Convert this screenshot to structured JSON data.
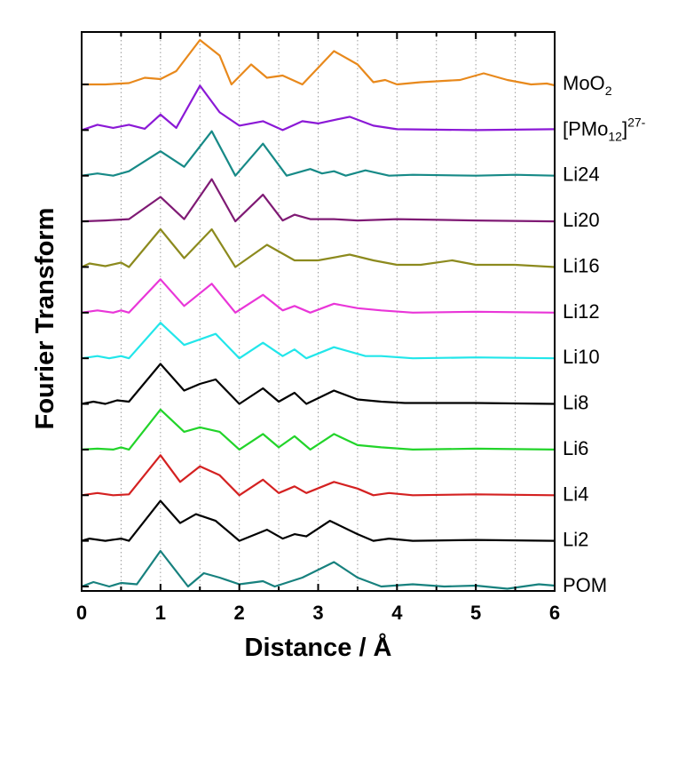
{
  "chart_data": {
    "type": "line",
    "title": "",
    "xlabel": "Distance / Å",
    "ylabel": "Fourier Transform",
    "xlim": [
      0,
      6
    ],
    "x_ticks": [
      "0",
      "1",
      "2",
      "3",
      "4",
      "5",
      "6"
    ],
    "y_ticks_shown": false,
    "grid": "vertical dotted at 0.5 Å intervals",
    "legend": "none (series labelled at right end of each curve)",
    "stacked_offset": true,
    "series": [
      {
        "name": "MoO₂",
        "label_main": "MoO",
        "label_sub": "2",
        "label_sup": "",
        "label_close": "",
        "color": "#e8891c",
        "points": [
          [
            0,
            0.0
          ],
          [
            0.3,
            0.0
          ],
          [
            0.6,
            0.03
          ],
          [
            0.8,
            0.15
          ],
          [
            1.0,
            0.12
          ],
          [
            1.2,
            0.3
          ],
          [
            1.5,
            1.0
          ],
          [
            1.75,
            0.65
          ],
          [
            1.9,
            0.0
          ],
          [
            2.15,
            0.45
          ],
          [
            2.35,
            0.15
          ],
          [
            2.55,
            0.2
          ],
          [
            2.8,
            0.0
          ],
          [
            3.2,
            0.75
          ],
          [
            3.5,
            0.45
          ],
          [
            3.7,
            0.05
          ],
          [
            3.85,
            0.1
          ],
          [
            4.0,
            0.0
          ],
          [
            4.3,
            0.05
          ],
          [
            4.8,
            0.1
          ],
          [
            5.1,
            0.25
          ],
          [
            5.4,
            0.1
          ],
          [
            5.7,
            0.0
          ],
          [
            5.9,
            0.02
          ],
          [
            6.0,
            -0.02
          ]
        ]
      },
      {
        "name": "[PMo₁₂]²⁷⁻",
        "label_main": "[PMo",
        "label_sub": "12",
        "label_sup": "27-",
        "label_close": "]",
        "color": "#8b19d6",
        "points": [
          [
            0,
            0.0
          ],
          [
            0.2,
            0.12
          ],
          [
            0.4,
            0.05
          ],
          [
            0.6,
            0.12
          ],
          [
            0.8,
            0.03
          ],
          [
            1.0,
            0.35
          ],
          [
            1.2,
            0.05
          ],
          [
            1.5,
            1.0
          ],
          [
            1.75,
            0.4
          ],
          [
            2.0,
            0.1
          ],
          [
            2.3,
            0.2
          ],
          [
            2.55,
            0.0
          ],
          [
            2.8,
            0.2
          ],
          [
            3.0,
            0.15
          ],
          [
            3.4,
            0.3
          ],
          [
            3.7,
            0.1
          ],
          [
            4.0,
            0.02
          ],
          [
            5.0,
            0.0
          ],
          [
            6.0,
            0.02
          ]
        ]
      },
      {
        "name": "Li24",
        "label_main": "Li24",
        "label_sub": "",
        "label_sup": "",
        "label_close": "",
        "color": "#178a87",
        "points": [
          [
            0,
            0.0
          ],
          [
            0.2,
            0.05
          ],
          [
            0.4,
            0.0
          ],
          [
            0.6,
            0.1
          ],
          [
            1.0,
            0.55
          ],
          [
            1.3,
            0.2
          ],
          [
            1.65,
            1.0
          ],
          [
            1.95,
            0.0
          ],
          [
            2.3,
            0.72
          ],
          [
            2.6,
            0.0
          ],
          [
            2.9,
            0.15
          ],
          [
            3.05,
            0.05
          ],
          [
            3.2,
            0.1
          ],
          [
            3.35,
            0.0
          ],
          [
            3.6,
            0.12
          ],
          [
            3.9,
            0.0
          ],
          [
            4.2,
            0.02
          ],
          [
            5.0,
            0.0
          ],
          [
            5.5,
            0.02
          ],
          [
            6.0,
            0.0
          ]
        ]
      },
      {
        "name": "Li20",
        "label_main": "Li20",
        "label_sub": "",
        "label_sup": "",
        "label_close": "",
        "color": "#7f1a74",
        "points": [
          [
            0,
            0.0
          ],
          [
            0.3,
            0.02
          ],
          [
            0.6,
            0.05
          ],
          [
            1.0,
            0.55
          ],
          [
            1.3,
            0.05
          ],
          [
            1.65,
            0.95
          ],
          [
            1.95,
            0.0
          ],
          [
            2.3,
            0.6
          ],
          [
            2.55,
            0.02
          ],
          [
            2.7,
            0.15
          ],
          [
            2.9,
            0.05
          ],
          [
            3.2,
            0.05
          ],
          [
            3.5,
            0.02
          ],
          [
            4.0,
            0.05
          ],
          [
            5.0,
            0.02
          ],
          [
            6.0,
            0.0
          ]
        ]
      },
      {
        "name": "Li16",
        "label_main": "Li16",
        "label_sub": "",
        "label_sup": "",
        "label_close": "",
        "color": "#8c8a1e",
        "points": [
          [
            0,
            0.0
          ],
          [
            0.1,
            0.08
          ],
          [
            0.3,
            0.02
          ],
          [
            0.5,
            0.1
          ],
          [
            0.6,
            0.0
          ],
          [
            1.0,
            0.85
          ],
          [
            1.3,
            0.2
          ],
          [
            1.65,
            0.85
          ],
          [
            1.95,
            0.0
          ],
          [
            2.35,
            0.5
          ],
          [
            2.7,
            0.15
          ],
          [
            3.0,
            0.15
          ],
          [
            3.4,
            0.28
          ],
          [
            3.7,
            0.15
          ],
          [
            4.0,
            0.05
          ],
          [
            4.3,
            0.05
          ],
          [
            4.7,
            0.15
          ],
          [
            5.0,
            0.05
          ],
          [
            5.5,
            0.05
          ],
          [
            6.0,
            0.0
          ]
        ]
      },
      {
        "name": "Li12",
        "label_main": "Li12",
        "label_sub": "",
        "label_sup": "",
        "label_close": "",
        "color": "#e936d8",
        "points": [
          [
            0,
            0.0
          ],
          [
            0.2,
            0.05
          ],
          [
            0.4,
            0.0
          ],
          [
            0.5,
            0.05
          ],
          [
            0.6,
            0.0
          ],
          [
            1.0,
            0.75
          ],
          [
            1.3,
            0.15
          ],
          [
            1.65,
            0.65
          ],
          [
            1.95,
            0.0
          ],
          [
            2.3,
            0.4
          ],
          [
            2.55,
            0.05
          ],
          [
            2.7,
            0.15
          ],
          [
            2.9,
            0.0
          ],
          [
            3.2,
            0.2
          ],
          [
            3.5,
            0.1
          ],
          [
            3.8,
            0.05
          ],
          [
            4.2,
            0.0
          ],
          [
            5.0,
            0.02
          ],
          [
            6.0,
            0.0
          ]
        ]
      },
      {
        "name": "Li10",
        "label_main": "Li10",
        "label_sub": "",
        "label_sup": "",
        "label_close": "",
        "color": "#22e6ea",
        "points": [
          [
            0,
            0.0
          ],
          [
            0.2,
            0.05
          ],
          [
            0.35,
            0.0
          ],
          [
            0.5,
            0.05
          ],
          [
            0.6,
            0.0
          ],
          [
            1.0,
            0.8
          ],
          [
            1.3,
            0.3
          ],
          [
            1.7,
            0.55
          ],
          [
            2.0,
            0.0
          ],
          [
            2.3,
            0.35
          ],
          [
            2.55,
            0.05
          ],
          [
            2.7,
            0.2
          ],
          [
            2.85,
            0.0
          ],
          [
            3.2,
            0.25
          ],
          [
            3.6,
            0.05
          ],
          [
            3.8,
            0.05
          ],
          [
            4.2,
            0.0
          ],
          [
            5.0,
            0.02
          ],
          [
            6.0,
            0.0
          ]
        ]
      },
      {
        "name": "Li8",
        "label_main": "Li8",
        "label_sub": "",
        "label_sup": "",
        "label_close": "",
        "color": "#000000",
        "points": [
          [
            0,
            0.0
          ],
          [
            0.15,
            0.05
          ],
          [
            0.3,
            0.0
          ],
          [
            0.45,
            0.08
          ],
          [
            0.6,
            0.05
          ],
          [
            1.0,
            0.9
          ],
          [
            1.3,
            0.3
          ],
          [
            1.5,
            0.45
          ],
          [
            1.7,
            0.55
          ],
          [
            2.0,
            0.0
          ],
          [
            2.3,
            0.35
          ],
          [
            2.5,
            0.05
          ],
          [
            2.7,
            0.25
          ],
          [
            2.85,
            0.0
          ],
          [
            3.2,
            0.3
          ],
          [
            3.5,
            0.1
          ],
          [
            3.8,
            0.05
          ],
          [
            4.1,
            0.02
          ],
          [
            5.0,
            0.02
          ],
          [
            6.0,
            0.0
          ]
        ]
      },
      {
        "name": "Li6",
        "label_main": "Li6",
        "label_sub": "",
        "label_sup": "",
        "label_close": "",
        "color": "#22d42a",
        "points": [
          [
            0,
            0.0
          ],
          [
            0.2,
            0.02
          ],
          [
            0.4,
            0.0
          ],
          [
            0.5,
            0.05
          ],
          [
            0.6,
            0.0
          ],
          [
            1.0,
            0.9
          ],
          [
            1.3,
            0.4
          ],
          [
            1.5,
            0.5
          ],
          [
            1.75,
            0.4
          ],
          [
            2.0,
            0.0
          ],
          [
            2.3,
            0.35
          ],
          [
            2.5,
            0.05
          ],
          [
            2.7,
            0.3
          ],
          [
            2.9,
            0.0
          ],
          [
            3.2,
            0.35
          ],
          [
            3.5,
            0.1
          ],
          [
            3.8,
            0.05
          ],
          [
            4.2,
            0.0
          ],
          [
            5.0,
            0.02
          ],
          [
            6.0,
            0.0
          ]
        ]
      },
      {
        "name": "Li4",
        "label_main": "Li4",
        "label_sub": "",
        "label_sup": "",
        "label_close": "",
        "color": "#d42121",
        "points": [
          [
            0,
            0.0
          ],
          [
            0.2,
            0.05
          ],
          [
            0.4,
            0.0
          ],
          [
            0.6,
            0.02
          ],
          [
            1.0,
            0.9
          ],
          [
            1.25,
            0.3
          ],
          [
            1.5,
            0.65
          ],
          [
            1.75,
            0.45
          ],
          [
            2.0,
            0.0
          ],
          [
            2.3,
            0.35
          ],
          [
            2.5,
            0.05
          ],
          [
            2.7,
            0.2
          ],
          [
            2.85,
            0.05
          ],
          [
            3.2,
            0.3
          ],
          [
            3.5,
            0.15
          ],
          [
            3.7,
            0.0
          ],
          [
            3.9,
            0.05
          ],
          [
            4.2,
            0.0
          ],
          [
            5.0,
            0.02
          ],
          [
            6.0,
            0.0
          ]
        ]
      },
      {
        "name": "Li2",
        "label_main": "Li2",
        "label_sub": "",
        "label_sup": "",
        "label_close": "",
        "color": "#000000",
        "points": [
          [
            0,
            0.0
          ],
          [
            0.1,
            0.05
          ],
          [
            0.3,
            0.0
          ],
          [
            0.5,
            0.05
          ],
          [
            0.6,
            0.0
          ],
          [
            1.0,
            0.9
          ],
          [
            1.25,
            0.4
          ],
          [
            1.45,
            0.6
          ],
          [
            1.7,
            0.45
          ],
          [
            2.0,
            0.0
          ],
          [
            2.35,
            0.25
          ],
          [
            2.55,
            0.05
          ],
          [
            2.7,
            0.15
          ],
          [
            2.85,
            0.1
          ],
          [
            3.15,
            0.45
          ],
          [
            3.5,
            0.15
          ],
          [
            3.7,
            0.0
          ],
          [
            3.9,
            0.05
          ],
          [
            4.2,
            0.0
          ],
          [
            5.0,
            0.02
          ],
          [
            6.0,
            0.0
          ]
        ]
      },
      {
        "name": "POM",
        "label_main": "POM",
        "label_sub": "",
        "label_sup": "",
        "label_close": "",
        "color": "#17817e",
        "points": [
          [
            0,
            0.0
          ],
          [
            0.15,
            0.1
          ],
          [
            0.35,
            0.0
          ],
          [
            0.5,
            0.08
          ],
          [
            0.7,
            0.05
          ],
          [
            1.0,
            0.8
          ],
          [
            1.35,
            0.0
          ],
          [
            1.55,
            0.3
          ],
          [
            1.75,
            0.2
          ],
          [
            2.0,
            0.05
          ],
          [
            2.3,
            0.12
          ],
          [
            2.45,
            0.0
          ],
          [
            2.8,
            0.2
          ],
          [
            3.2,
            0.55
          ],
          [
            3.5,
            0.2
          ],
          [
            3.8,
            0.0
          ],
          [
            4.2,
            0.05
          ],
          [
            4.6,
            0.0
          ],
          [
            5.0,
            0.02
          ],
          [
            5.4,
            -0.05
          ],
          [
            5.8,
            0.05
          ],
          [
            6.0,
            0.02
          ]
        ]
      }
    ]
  }
}
